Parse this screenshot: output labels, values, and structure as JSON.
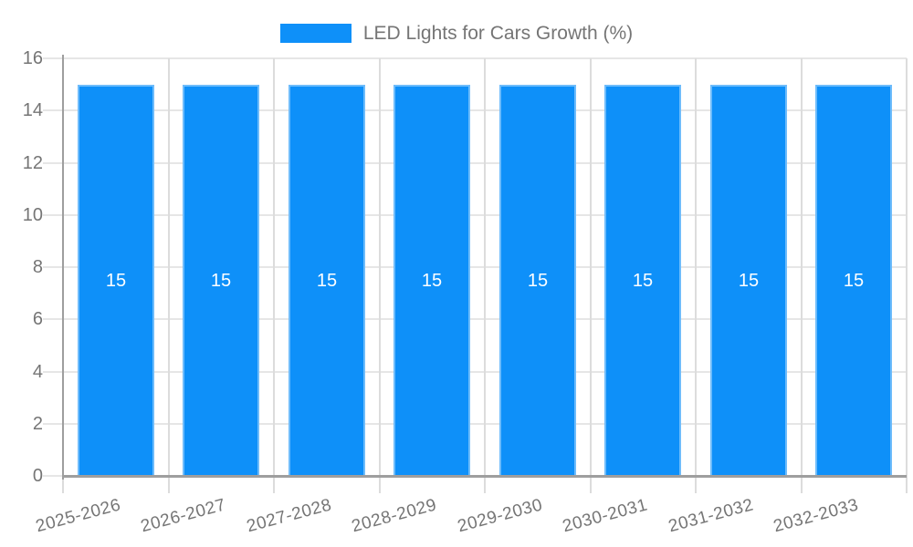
{
  "legend": {
    "title": "LED Lights for Cars Growth (%)"
  },
  "chart_data": {
    "type": "bar",
    "title": "LED Lights for Cars Growth (%)",
    "categories": [
      "2025-2026",
      "2026-2027",
      "2027-2028",
      "2028-2029",
      "2029-2030",
      "2030-2031",
      "2031-2032",
      "2032-2033"
    ],
    "series": [
      {
        "name": "LED Lights for Cars Growth (%)",
        "values": [
          15,
          15,
          15,
          15,
          15,
          15,
          15,
          15
        ]
      }
    ],
    "values": [
      15,
      15,
      15,
      15,
      15,
      15,
      15,
      15
    ],
    "bar_labels": [
      "15",
      "15",
      "15",
      "15",
      "15",
      "15",
      "15",
      "15"
    ],
    "ylim": [
      0,
      16
    ],
    "yticks": [
      0,
      2,
      4,
      6,
      8,
      10,
      12,
      14,
      16
    ],
    "grid": true,
    "legend_position": "top",
    "x_label_rotation_deg": -15,
    "colors": {
      "bar": "#0E90F9",
      "bar_label": "#FFFFFF",
      "axis_text": "#757575",
      "grid_horizontal": "#E6E6E6",
      "grid_vertical": "#DCDCDC",
      "axis_line": "#9E9E9E",
      "background": "#FFFFFF"
    }
  }
}
